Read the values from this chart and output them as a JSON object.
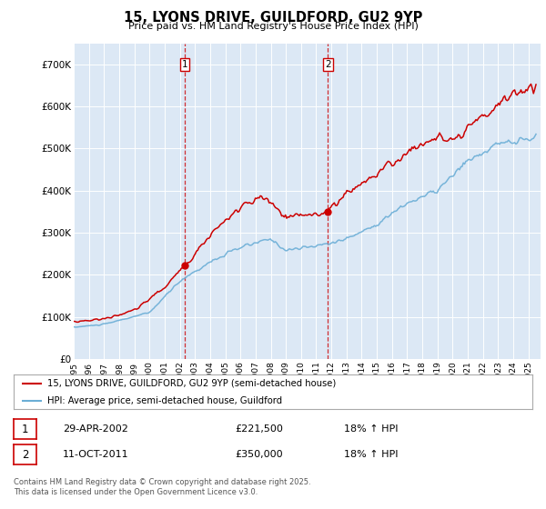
{
  "title": "15, LYONS DRIVE, GUILDFORD, GU2 9YP",
  "subtitle": "Price paid vs. HM Land Registry's House Price Index (HPI)",
  "legend_line1": "15, LYONS DRIVE, GUILDFORD, GU2 9YP (semi-detached house)",
  "legend_line2": "HPI: Average price, semi-detached house, Guildford",
  "purchase1_date": "29-APR-2002",
  "purchase1_price": "£221,500",
  "purchase1_hpi": "18% ↑ HPI",
  "purchase2_date": "11-OCT-2011",
  "purchase2_price": "£350,000",
  "purchase2_hpi": "18% ↑ HPI",
  "footer": "Contains HM Land Registry data © Crown copyright and database right 2025.\nThis data is licensed under the Open Government Licence v3.0.",
  "hpi_color": "#6baed6",
  "price_color": "#cc0000",
  "vline_color": "#cc0000",
  "background_color": "#ffffff",
  "plot_bg_color": "#dce8f5",
  "ylim": [
    0,
    750000
  ],
  "yticks": [
    0,
    100000,
    200000,
    300000,
    400000,
    500000,
    600000,
    700000
  ],
  "ytick_labels": [
    "£0",
    "£100K",
    "£200K",
    "£300K",
    "£400K",
    "£500K",
    "£600K",
    "£700K"
  ],
  "purchase1_year": 2002.33,
  "purchase2_year": 2011.78,
  "purchase1_value": 221500,
  "purchase2_value": 350000
}
